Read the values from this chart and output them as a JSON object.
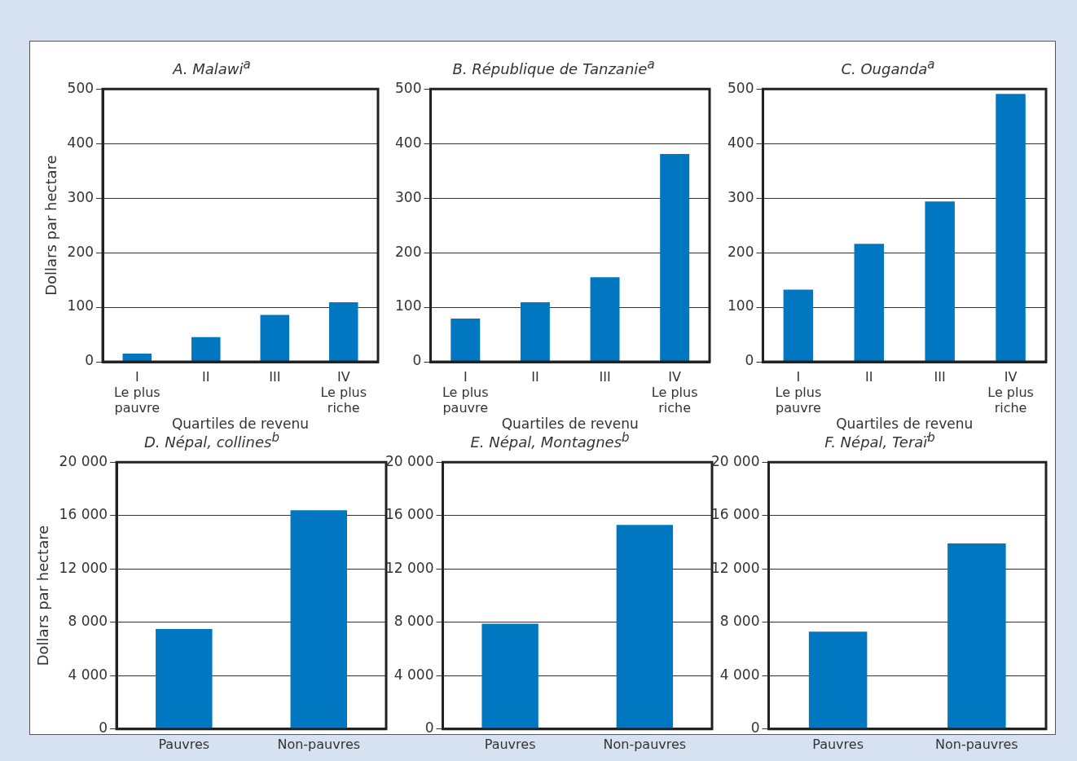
{
  "chart_data": [
    {
      "type": "bar",
      "title": "A. Malawi$^{a}$",
      "ylabel": "Dollars par hectare",
      "xlabel": "Quartiles de revenu",
      "categories": [
        "I\nLe plus\npauvre",
        "II",
        "III",
        "IV\nLe plus\nriche"
      ],
      "values": [
        15,
        45,
        86,
        109
      ],
      "color": "#0077c0",
      "ylim": [
        0,
        500
      ],
      "yticks": [
        0,
        100,
        200,
        300,
        400,
        500
      ],
      "grid": "y"
    },
    {
      "type": "bar",
      "title": "B. République de Tanzanie$^{a}$",
      "xlabel": "Quartiles de revenu",
      "categories": [
        "I\nLe plus\npauvre",
        "II",
        "III",
        "IV\nLe plus\nriche"
      ],
      "values": [
        79,
        109,
        155,
        381
      ],
      "color": "#0077c0",
      "ylim": [
        0,
        500
      ],
      "yticks": [
        0,
        100,
        200,
        300,
        400,
        500
      ],
      "grid": "y"
    },
    {
      "type": "bar",
      "title": "C. Ouganda$^{a}$",
      "xlabel": "Quartiles de revenu",
      "categories": [
        "I\nLe plus\npauvre",
        "II",
        "III",
        "IV\nLe plus\nriche"
      ],
      "values": [
        132,
        216,
        294,
        491
      ],
      "color": "#0077c0",
      "ylim": [
        0,
        500
      ],
      "yticks": [
        0,
        100,
        200,
        300,
        400,
        500
      ],
      "grid": "y"
    },
    {
      "type": "bar",
      "title": "D. Népal, collines$^{b}$",
      "ylabel": "Dollars par hectare",
      "categories": [
        "Pauvres",
        "Non-pauvres"
      ],
      "values": [
        7500,
        16400
      ],
      "color": "#0077c0",
      "ylim": [
        0,
        20000
      ],
      "yticks": [
        {
          "value": 0,
          "label": "0"
        },
        {
          "value": 4000,
          "label": "4 000"
        },
        {
          "value": 8000,
          "label": "8 000"
        },
        {
          "value": 12000,
          "label": "12 000"
        },
        {
          "value": 16000,
          "label": "16 000"
        },
        {
          "value": 20000,
          "label": "20 000"
        }
      ],
      "grid": "y"
    },
    {
      "type": "bar",
      "title": "E. Népal, Montagnes$^{b}$",
      "categories": [
        "Pauvres",
        "Non-pauvres"
      ],
      "values": [
        7900,
        15300
      ],
      "color": "#0077c0",
      "ylim": [
        0,
        20000
      ],
      "yticks": [
        {
          "value": 0,
          "label": "0"
        },
        {
          "value": 4000,
          "label": "4 000"
        },
        {
          "value": 8000,
          "label": "8 000"
        },
        {
          "value": 12000,
          "label": "12 000"
        },
        {
          "value": 16000,
          "label": "16 000"
        },
        {
          "value": 20000,
          "label": "20 000"
        }
      ],
      "grid": "y"
    },
    {
      "type": "bar",
      "title": "F. Népal, Teraï$^{b}$",
      "categories": [
        "Pauvres",
        "Non-pauvres"
      ],
      "values": [
        7300,
        13900
      ],
      "color": "#0077c0",
      "ylim": [
        0,
        20000
      ],
      "yticks": [
        {
          "value": 0,
          "label": "0"
        },
        {
          "value": 4000,
          "label": "4 000"
        },
        {
          "value": 8000,
          "label": "8 000"
        },
        {
          "value": 12000,
          "label": "12 000"
        },
        {
          "value": 16000,
          "label": "16 000"
        },
        {
          "value": 20000,
          "label": "20 000"
        }
      ],
      "grid": "y"
    }
  ]
}
